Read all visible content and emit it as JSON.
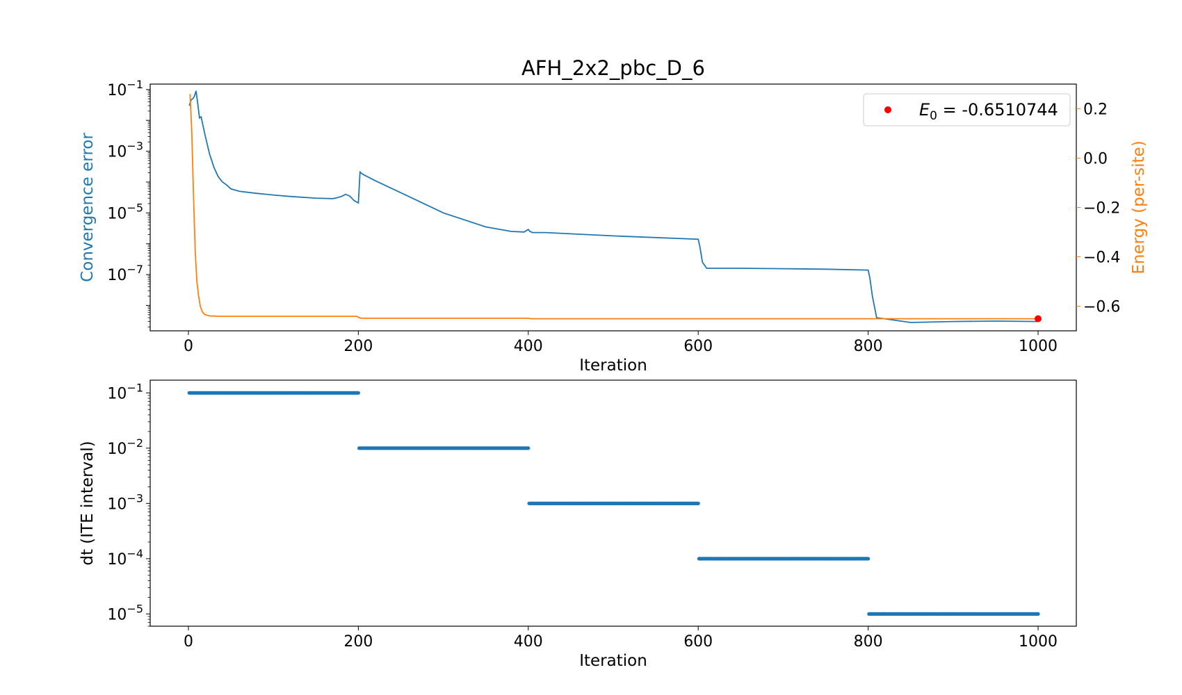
{
  "chart_data": [
    {
      "type": "line",
      "title": "AFH_2x2_pbc_D_6",
      "xlabel": "Iteration",
      "ylabel": "Convergence error",
      "ylabel_right": "Energy (per-site)",
      "xlim": [
        -45,
        1045
      ],
      "xticks": [
        0,
        200,
        400,
        600,
        800,
        1000
      ],
      "yscale_left": "log",
      "ylim_left": [
        1.5e-09,
        0.15
      ],
      "yticks_left": [
        {
          "base": "10",
          "exp": "−1",
          "value": 0.1
        },
        {
          "base": "10",
          "exp": "−3",
          "value": 0.001
        },
        {
          "base": "10",
          "exp": "−5",
          "value": 1e-05
        },
        {
          "base": "10",
          "exp": "−7",
          "value": 1e-07
        }
      ],
      "ylim_right": [
        -0.7,
        0.3
      ],
      "yticks_right": [
        {
          "label": "0.2",
          "value": 0.2
        },
        {
          "label": "0.0",
          "value": 0.0
        },
        {
          "label": "−0.2",
          "value": -0.2
        },
        {
          "label": "−0.4",
          "value": -0.4
        },
        {
          "label": "−0.6",
          "value": -0.6
        }
      ],
      "grid": false,
      "legend": {
        "placement": "top-right",
        "symbol": "E",
        "subscript": "0",
        "text": " = -0.6510744"
      },
      "colors": {
        "convergence": "#1f77b4",
        "energy": "#ff7f0e",
        "final": "#ff0000"
      },
      "series": [
        {
          "axis": "left",
          "x": [
            1,
            3,
            5,
            7,
            9,
            11,
            13,
            15,
            17,
            20,
            25,
            30,
            35,
            40,
            45,
            50,
            60,
            80,
            100,
            120,
            150,
            170,
            175,
            180,
            185,
            190,
            195,
            200,
            202,
            205,
            220,
            250,
            300,
            350,
            380,
            395,
            400,
            402,
            405,
            420,
            500,
            600,
            602,
            605,
            610,
            650,
            700,
            750,
            800,
            802,
            805,
            810,
            850,
            900,
            950,
            1000
          ],
          "y": [
            0.03,
            0.045,
            0.05,
            0.06,
            0.09,
            0.035,
            0.012,
            0.013,
            0.007,
            0.003,
            0.0008,
            0.0003,
            0.00015,
            0.0001,
            8e-05,
            6e-05,
            5e-05,
            4.3e-05,
            3.8e-05,
            3.4e-05,
            3e-05,
            2.9e-05,
            3.1e-05,
            3.4e-05,
            4e-05,
            3.5e-05,
            2.5e-05,
            2.1e-05,
            0.00021,
            0.00018,
            0.00011,
            4.5e-05,
            1e-05,
            3.5e-06,
            2.5e-06,
            2.4e-06,
            2.9e-06,
            2.5e-06,
            2.3e-06,
            2.3e-06,
            1.8e-06,
            1.4e-06,
            8e-07,
            2.5e-07,
            1.6e-07,
            1.6e-07,
            1.55e-07,
            1.5e-07,
            1.4e-07,
            8e-08,
            2e-08,
            4e-09,
            2.8e-09,
            3e-09,
            3.1e-09,
            3e-09
          ]
        },
        {
          "axis": "right",
          "x": [
            2,
            4,
            6,
            8,
            10,
            12,
            14,
            16,
            18,
            20,
            23,
            26,
            30,
            35,
            40,
            60,
            100,
            150,
            198,
            200,
            203,
            250,
            300,
            350,
            400,
            402,
            405,
            600,
            800,
            1000
          ],
          "y": [
            0.26,
            0.1,
            -0.15,
            -0.38,
            -0.5,
            -0.56,
            -0.6,
            -0.62,
            -0.63,
            -0.635,
            -0.638,
            -0.64,
            -0.64,
            -0.641,
            -0.641,
            -0.641,
            -0.641,
            -0.641,
            -0.641,
            -0.645,
            -0.649,
            -0.649,
            -0.649,
            -0.649,
            -0.649,
            -0.6505,
            -0.651,
            -0.651,
            -0.651,
            -0.651
          ]
        }
      ],
      "final_point": {
        "x": 1000,
        "y": -0.6510744
      }
    },
    {
      "type": "scatter",
      "xlabel": "Iteration",
      "ylabel": "dt (ITE interval)",
      "xlim": [
        -45,
        1045
      ],
      "xticks": [
        0,
        200,
        400,
        600,
        800,
        1000
      ],
      "yscale": "log",
      "ylim": [
        6e-06,
        0.17
      ],
      "yticks": [
        {
          "base": "10",
          "exp": "−1",
          "value": 0.1
        },
        {
          "base": "10",
          "exp": "−2",
          "value": 0.01
        },
        {
          "base": "10",
          "exp": "−3",
          "value": 0.001
        },
        {
          "base": "10",
          "exp": "−4",
          "value": 0.0001
        },
        {
          "base": "10",
          "exp": "−5",
          "value": 1e-05
        }
      ],
      "grid": false,
      "color": "#1f77b4",
      "segments": [
        {
          "x_start": 1,
          "x_end": 200,
          "value": 0.1
        },
        {
          "x_start": 201,
          "x_end": 400,
          "value": 0.01
        },
        {
          "x_start": 401,
          "x_end": 600,
          "value": 0.001
        },
        {
          "x_start": 601,
          "x_end": 800,
          "value": 0.0001
        },
        {
          "x_start": 801,
          "x_end": 1000,
          "value": 1e-05
        }
      ]
    }
  ]
}
